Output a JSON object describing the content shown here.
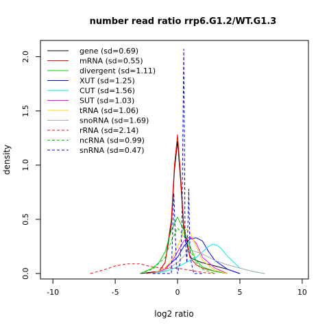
{
  "chart_data": {
    "type": "line",
    "title": "number read ratio rrp6.G1.2/WT.G1.3",
    "xlabel": "log2 ratio",
    "ylabel": "density",
    "xlim": [
      -11,
      10.5
    ],
    "ylim": [
      -0.05,
      2.15
    ],
    "xticks": [
      -10,
      -5,
      0,
      5,
      10
    ],
    "yticks": [
      0.0,
      0.5,
      1.0,
      1.5,
      2.0
    ],
    "xtick_labels": [
      "-10",
      "-5",
      "0",
      "5",
      "10"
    ],
    "ytick_labels": [
      "0.0",
      "0.5",
      "1.0",
      "1.5",
      "2.0"
    ],
    "legend_position": "top-left",
    "series": [
      {
        "name": "gene (sd=0.69)",
        "color": "#000000",
        "dash": "solid",
        "x": [
          -3,
          -1.5,
          -1,
          -0.5,
          -0.25,
          0,
          0.25,
          0.5,
          1,
          1.5,
          2,
          3,
          4,
          5
        ],
        "y": [
          0,
          0.02,
          0.1,
          0.45,
          0.95,
          1.22,
          0.85,
          0.4,
          0.15,
          0.12,
          0.1,
          0.07,
          0.04,
          0
        ]
      },
      {
        "name": "mRNA (sd=0.55)",
        "color": "#ff0000",
        "dash": "solid",
        "x": [
          -2.5,
          -1.5,
          -1,
          -0.5,
          -0.25,
          0,
          0.25,
          0.5,
          1,
          1.5,
          2,
          3,
          4
        ],
        "y": [
          0,
          0.02,
          0.1,
          0.5,
          1.0,
          1.28,
          0.9,
          0.45,
          0.15,
          0.08,
          0.05,
          0.02,
          0
        ]
      },
      {
        "name": "divergent (sd=1.11)",
        "color": "#00cc00",
        "dash": "solid",
        "x": [
          -3,
          -2,
          -1.5,
          -1,
          -0.5,
          0,
          0.5,
          1,
          1.5,
          2,
          3,
          4
        ],
        "y": [
          0,
          0.05,
          0.1,
          0.2,
          0.4,
          0.52,
          0.4,
          0.25,
          0.12,
          0.06,
          0.02,
          0
        ]
      },
      {
        "name": "XUT (sd=1.25)",
        "color": "#0000ff",
        "dash": "solid",
        "x": [
          -2,
          -1,
          0,
          0.5,
          1,
          1.5,
          2,
          2.5,
          3,
          4,
          5
        ],
        "y": [
          0,
          0.05,
          0.15,
          0.25,
          0.32,
          0.33,
          0.3,
          0.2,
          0.12,
          0.04,
          0
        ]
      },
      {
        "name": "CUT (sd=1.56)",
        "color": "#00e5ee",
        "dash": "solid",
        "x": [
          -2,
          -1,
          0,
          1,
          1.5,
          2,
          2.5,
          2.8,
          3.2,
          3.5,
          4,
          5,
          6,
          7
        ],
        "y": [
          0,
          0.02,
          0.06,
          0.12,
          0.15,
          0.2,
          0.25,
          0.27,
          0.26,
          0.23,
          0.16,
          0.05,
          0.02,
          0
        ]
      },
      {
        "name": "SUT (sd=1.03)",
        "color": "#ff00ff",
        "dash": "solid",
        "x": [
          -2,
          -1,
          -0.5,
          0,
          0.5,
          1,
          1.5,
          2,
          3,
          4
        ],
        "y": [
          0,
          0.04,
          0.1,
          0.2,
          0.3,
          0.34,
          0.28,
          0.15,
          0.05,
          0
        ]
      },
      {
        "name": "tRNA (sd=1.06)",
        "color": "#ffd700",
        "dash": "solid",
        "x": [
          -2,
          -1,
          -0.5,
          0,
          0.5,
          0.75,
          1,
          1.5,
          2,
          3,
          4
        ],
        "y": [
          0,
          0.05,
          0.12,
          0.25,
          0.38,
          0.41,
          0.38,
          0.25,
          0.12,
          0.03,
          0
        ]
      },
      {
        "name": "snoRNA (sd=1.69)",
        "color": "#aaaaaa",
        "dash": "solid",
        "x": [
          -2,
          -1,
          0,
          1,
          2,
          3,
          4,
          5,
          6,
          7
        ],
        "y": [
          0,
          0.03,
          0.1,
          0.22,
          0.18,
          0.12,
          0.08,
          0.05,
          0.02,
          0
        ]
      },
      {
        "name": "rRNA (sd=2.14)",
        "color": "#ff0000",
        "dash": "dashed",
        "x": [
          -7,
          -6,
          -5,
          -4,
          -3,
          -2,
          -1,
          0,
          1,
          2,
          3
        ],
        "y": [
          0,
          0.03,
          0.07,
          0.09,
          0.09,
          0.06,
          0.05,
          0.05,
          0.03,
          0.01,
          0
        ]
      },
      {
        "name": "ncRNA (sd=0.99)",
        "color": "#00cc00",
        "dash": "dashed",
        "x": [
          -3,
          -2,
          -1,
          -0.5,
          0,
          0.5,
          1,
          1.5,
          2,
          3
        ],
        "y": [
          0,
          0.04,
          0.15,
          0.3,
          0.42,
          0.35,
          0.22,
          0.1,
          0.04,
          0
        ]
      },
      {
        "name": "snRNA (sd=0.47)",
        "color": "#0000cc",
        "dash": "dashed",
        "x": [
          -2,
          -0.5,
          -0.3,
          -0.1,
          0,
          0.2,
          0.35,
          0.5,
          0.6,
          0.75,
          0.9,
          1,
          1.1,
          1.3,
          2
        ],
        "y": [
          0,
          0,
          0.74,
          0.1,
          0.0,
          0.1,
          0.4,
          2.07,
          0.35,
          0.1,
          0.78,
          0.2,
          0.1,
          0.0,
          0
        ]
      }
    ]
  }
}
